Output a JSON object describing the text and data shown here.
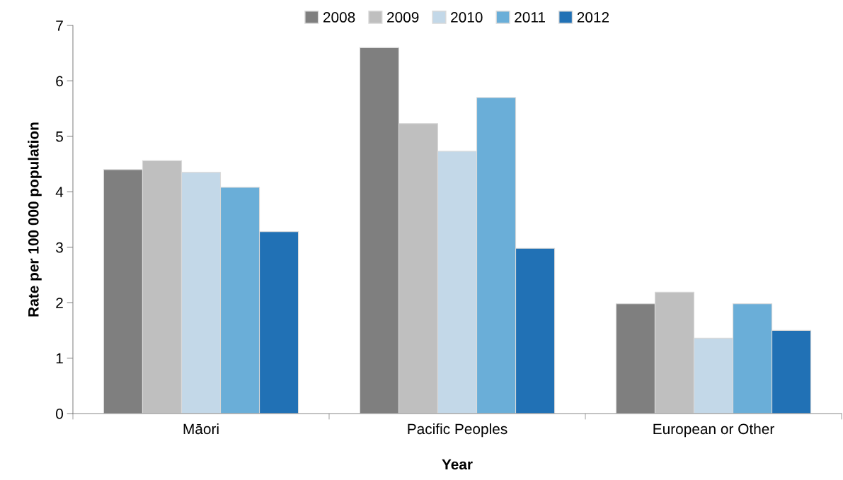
{
  "chart_data": {
    "type": "bar",
    "xlabel": "Year",
    "ylabel": "Rate per 100 000 population",
    "categories": [
      "Māori",
      "Pacific Peoples",
      "European or Other"
    ],
    "series": [
      {
        "name": "2008",
        "color": "#7f7f7f",
        "values": [
          4.4,
          6.6,
          1.98
        ]
      },
      {
        "name": "2009",
        "color": "#bfbfbf",
        "values": [
          4.56,
          5.23,
          2.19
        ]
      },
      {
        "name": "2010",
        "color": "#c3d8e8",
        "values": [
          4.35,
          4.73,
          1.36
        ]
      },
      {
        "name": "2011",
        "color": "#6aaed8",
        "values": [
          4.08,
          5.7,
          1.98
        ]
      },
      {
        "name": "2012",
        "color": "#2171b5",
        "values": [
          3.28,
          2.98,
          1.5
        ]
      }
    ],
    "ylim": [
      0,
      7
    ],
    "yticks": [
      0,
      1,
      2,
      3,
      4,
      5,
      6,
      7
    ],
    "grid": false,
    "legend": "top"
  }
}
